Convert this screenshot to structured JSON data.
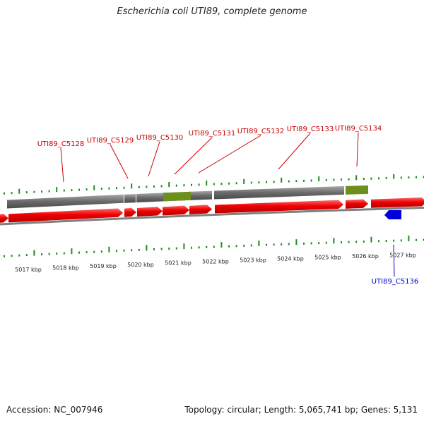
{
  "title": "Escherichia coli UTI89, complete genome",
  "footer": {
    "accession": "Accession: NC_007946",
    "summary": "Topology: circular; Length: 5,065,741 bp; Genes: 5,131"
  },
  "map": {
    "scale_labels": [
      "5017 kbp",
      "5018 kbp",
      "5019 kbp",
      "5020 kbp",
      "5021 kbp",
      "5022 kbp",
      "5023 kbp",
      "5024 kbp",
      "5025 kbp",
      "5026 kbp",
      "5027 kbp"
    ],
    "forward_gene_labels": [
      "UTI89_C5128",
      "UTI89_C5129",
      "UTI89_C5130",
      "UTI89_C5131",
      "UTI89_C5132",
      "UTI89_C5133",
      "UTI89_C5134"
    ],
    "reverse_gene_labels": [
      "UTI89_C5136"
    ],
    "colors": {
      "gene_forward": "#e00000",
      "cds_gray": "#707070",
      "rna_green": "#6d8f1e",
      "gene_reverse": "#0000dd",
      "tick": "#1f8a1f",
      "label_forward": "#cc0000",
      "label_reverse": "#0000cc",
      "backbone": "#808080"
    }
  }
}
